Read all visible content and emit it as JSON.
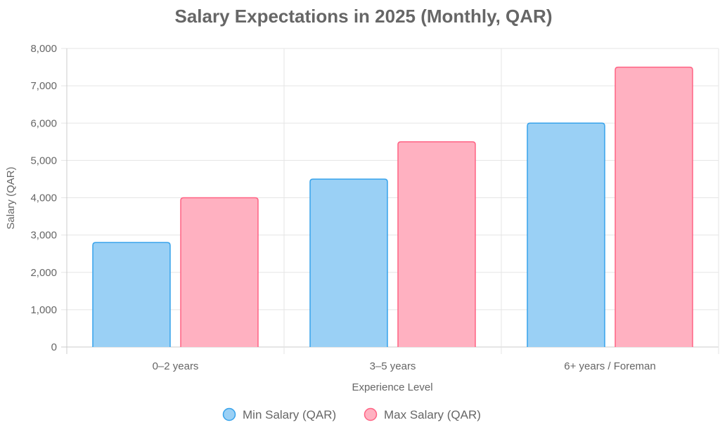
{
  "chart_data": {
    "type": "bar",
    "title": "Salary Expectations in 2025 (Monthly, QAR)",
    "xlabel": "Experience Level",
    "ylabel": "Salary (QAR)",
    "categories": [
      "0–2 years",
      "3–5 years",
      "6+ years / Foreman"
    ],
    "ylim": [
      0,
      8000
    ],
    "yticks": [
      "0",
      "1,000",
      "2,000",
      "3,000",
      "4,000",
      "5,000",
      "6,000",
      "7,000",
      "8,000"
    ],
    "grid": true,
    "legend_position": "bottom",
    "series": [
      {
        "name": "Min Salary (QAR)",
        "values": [
          2800,
          4500,
          6000
        ],
        "fill": "#9ad0f5",
        "border": "#36a2eb"
      },
      {
        "name": "Max Salary (QAR)",
        "values": [
          4000,
          5500,
          7500
        ],
        "fill": "#ffb1c1",
        "border": "#ff6384"
      }
    ]
  }
}
